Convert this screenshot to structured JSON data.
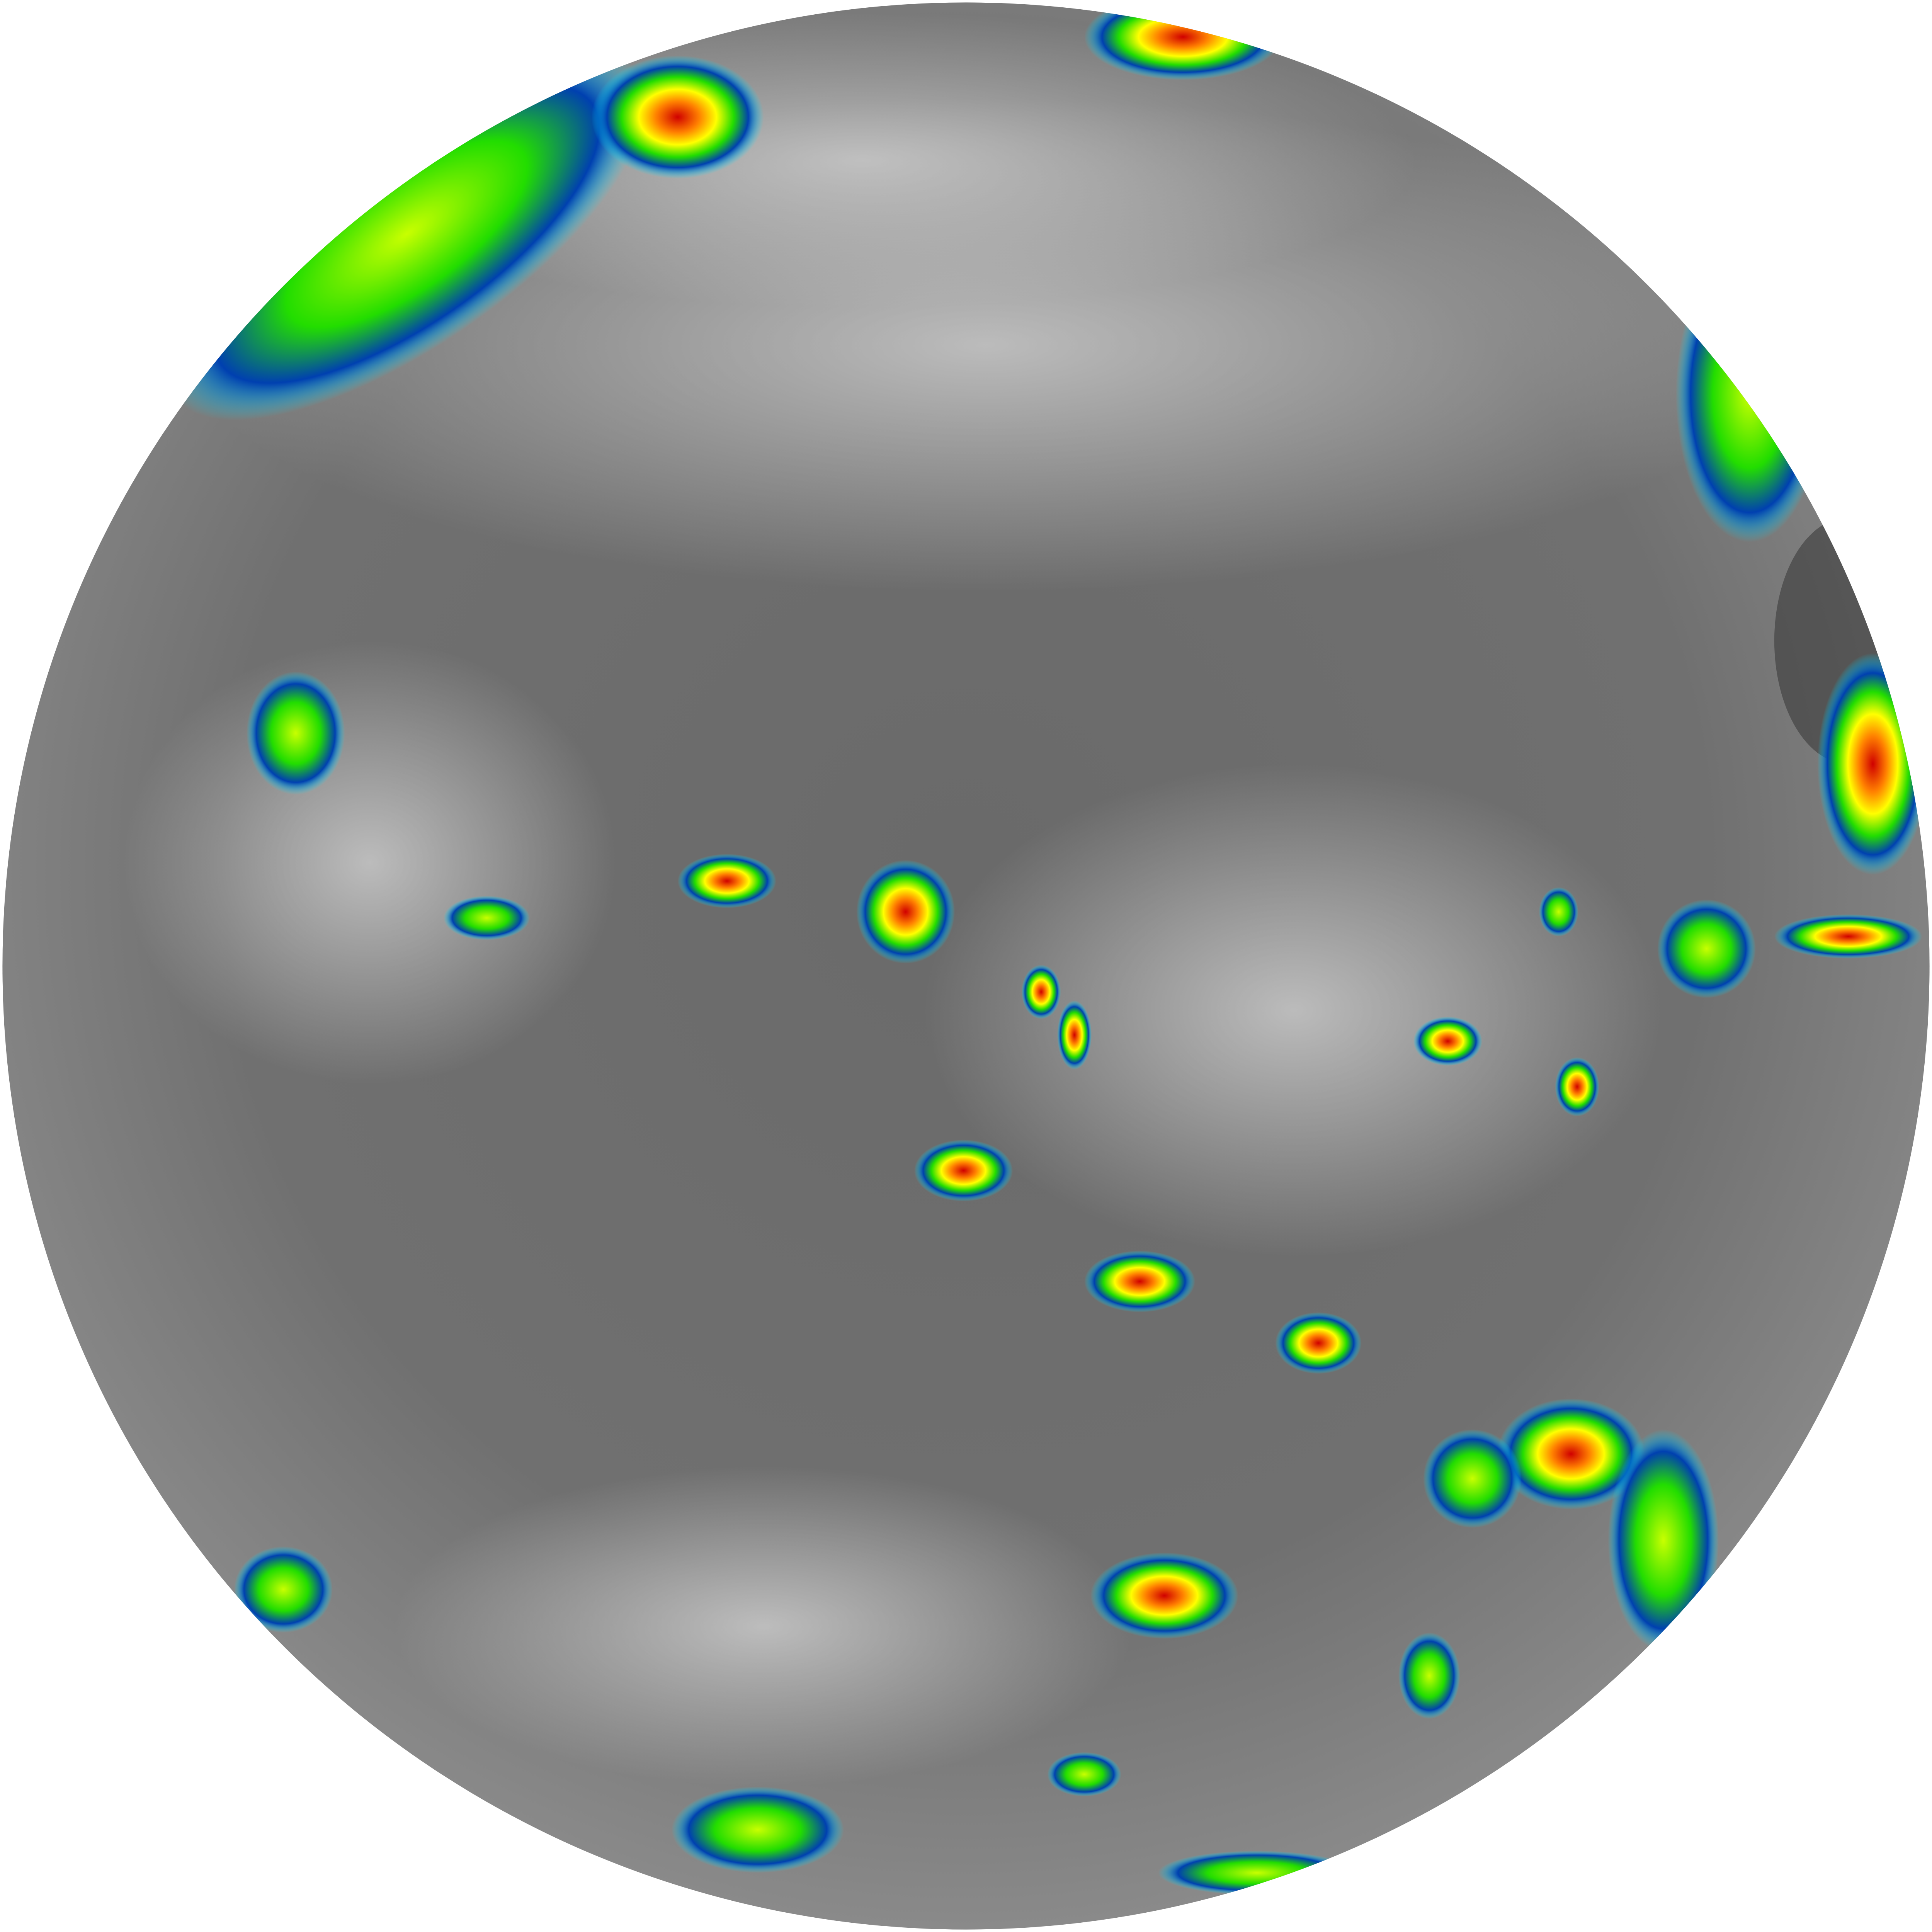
{
  "image": {
    "kind": "full-disk infrared satellite image",
    "background_color": "#ffffff",
    "disk_base_color": "#6e6e6e",
    "cloud_gray_color": "#c8c8c8",
    "enhancement_colors": [
      "#00e5ff",
      "#0050c8",
      "#002080",
      "#00c800",
      "#b4ff00",
      "#ffff00",
      "#ff8000",
      "#e00000"
    ]
  }
}
